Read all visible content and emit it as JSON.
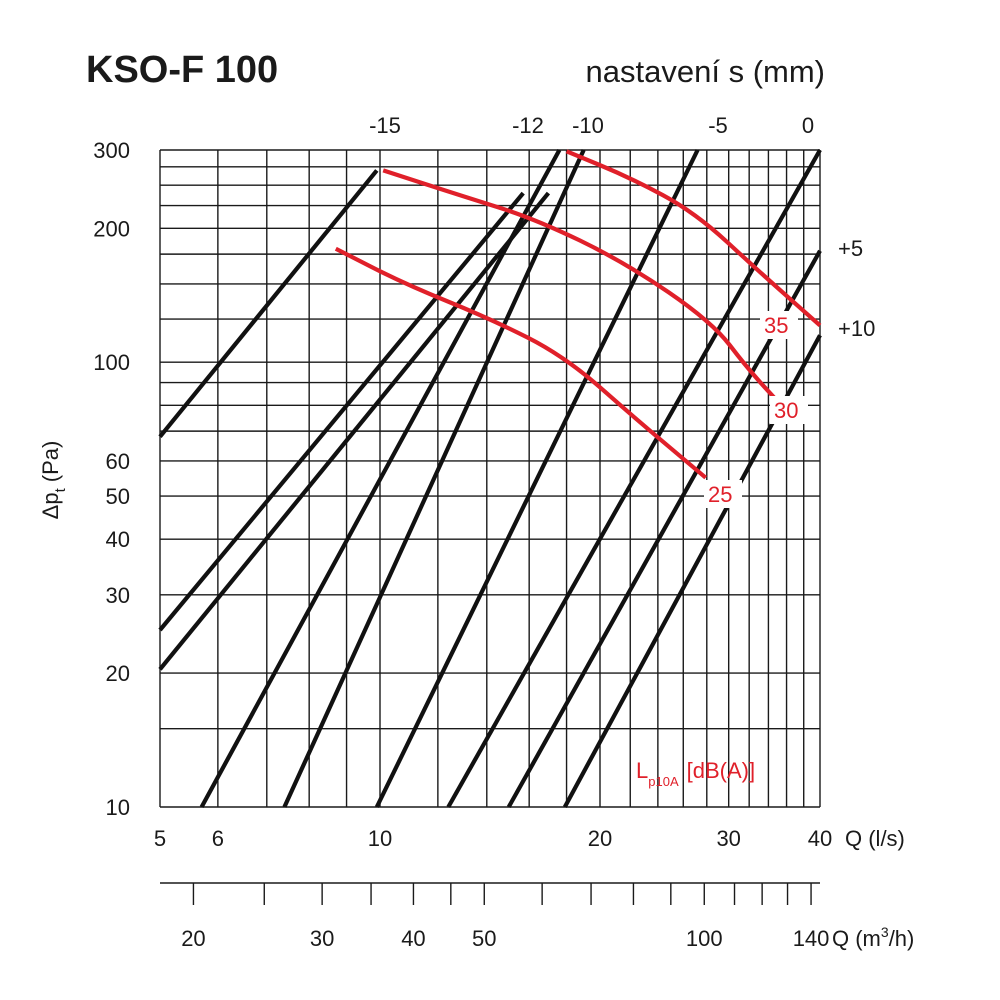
{
  "title": "KSO-F 100",
  "subtitle": "nastavení s (mm)",
  "chart_data": {
    "type": "line",
    "x_scale": "log",
    "y_scale": "log",
    "xlim": [
      5,
      40
    ],
    "ylim": [
      10,
      300
    ],
    "x_ticks": [
      5,
      6,
      10,
      20,
      30,
      40
    ],
    "y_ticks": [
      10,
      20,
      30,
      40,
      50,
      60,
      100,
      200,
      300
    ],
    "x_label": "Q (l/s)",
    "x2_label": "Q (m³/h)",
    "x2_ticks": [
      20,
      30,
      40,
      50,
      100,
      140
    ],
    "y_label": "Δp",
    "y_label_sub": "t",
    "y_label_unit": "(Pa)",
    "x2_label_prefix": "Q (m",
    "x2_label_sup": "3",
    "x2_label_suffix": "/h)",
    "settings": [
      {
        "label": "-15",
        "points": [
          [
            5.0,
            68
          ],
          [
            9.9,
            270
          ]
        ]
      },
      {
        "label": "",
        "points": [
          [
            5.0,
            25
          ],
          [
            15.7,
            240
          ]
        ]
      },
      {
        "label": "",
        "points": [
          [
            5.0,
            20.4
          ],
          [
            17.0,
            240
          ]
        ]
      },
      {
        "label": "-12",
        "points": [
          [
            5.7,
            10
          ],
          [
            17.6,
            300
          ]
        ]
      },
      {
        "label": "-10",
        "points": [
          [
            7.4,
            10
          ],
          [
            19.0,
            300
          ]
        ]
      },
      {
        "label": "-5",
        "points": [
          [
            9.9,
            10
          ],
          [
            27.2,
            300
          ]
        ]
      },
      {
        "label": "0",
        "points": [
          [
            12.4,
            10
          ],
          [
            40,
            300
          ]
        ]
      },
      {
        "label": "+5",
        "points": [
          [
            15.0,
            10
          ],
          [
            40,
            178
          ]
        ]
      },
      {
        "label": "+10",
        "points": [
          [
            17.9,
            10
          ],
          [
            40,
            115
          ]
        ]
      }
    ],
    "noise_curves": [
      {
        "label": "25",
        "points": [
          [
            8.7,
            180
          ],
          [
            10.8,
            150
          ],
          [
            14.2,
            125
          ],
          [
            17.9,
            103
          ],
          [
            22.3,
            75
          ],
          [
            27.9,
            55
          ]
        ]
      },
      {
        "label": "30",
        "points": [
          [
            10.1,
            270
          ],
          [
            13.0,
            236
          ],
          [
            16.3,
            210
          ],
          [
            21.6,
            168
          ],
          [
            28.5,
            123
          ],
          [
            31.8,
            97
          ],
          [
            35.4,
            80
          ]
        ]
      },
      {
        "label": "35",
        "points": [
          [
            18.0,
            298
          ],
          [
            22.0,
            260
          ],
          [
            27.0,
            217
          ],
          [
            33.0,
            160
          ],
          [
            40.0,
            121
          ]
        ]
      }
    ],
    "noise_legend": "L",
    "noise_legend_sub": "p10A",
    "noise_legend_unit": "[dB(A)]",
    "grid": true
  }
}
